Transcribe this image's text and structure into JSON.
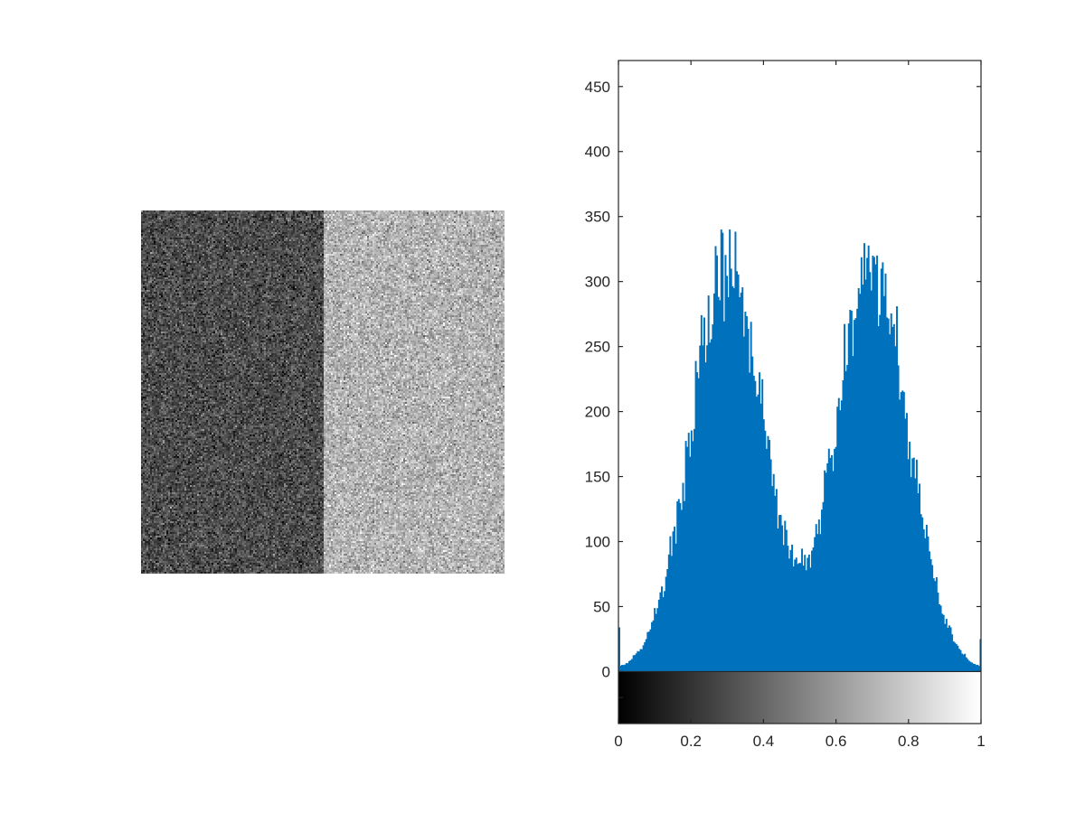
{
  "chart_data": [
    {
      "type": "image",
      "title": "",
      "description_values": {
        "left_region_mean_intensity": 0.3,
        "right_region_mean_intensity": 0.7
      }
    },
    {
      "type": "bar",
      "title": "",
      "xlabel": "",
      "ylabel": "",
      "xlim": [
        0,
        1
      ],
      "ylim": [
        -40,
        470
      ],
      "xticks": [
        0,
        0.2,
        0.4,
        0.6,
        0.8,
        1
      ],
      "xtick_labels": [
        "0",
        "0.2",
        "0.4",
        "0.6",
        "0.8",
        "1"
      ],
      "yticks": [
        0,
        50,
        100,
        150,
        200,
        250,
        300,
        350,
        400,
        450
      ],
      "ytick_labels": [
        "0",
        "50",
        "100",
        "150",
        "200",
        "250",
        "300",
        "350",
        "400",
        "450"
      ],
      "bins": 256,
      "bar_color": "#0072BD",
      "colorbar": {
        "range": [
          0,
          1
        ],
        "from_color": "#000000",
        "to_color": "#ffffff"
      },
      "peaks": [
        {
          "center": 0.3,
          "height": 340
        },
        {
          "center": 0.7,
          "height": 337
        }
      ],
      "valley": {
        "center": 0.5,
        "height": 85
      },
      "edge_counts": {
        "first_bin": 34,
        "last_bin": 25
      }
    }
  ]
}
